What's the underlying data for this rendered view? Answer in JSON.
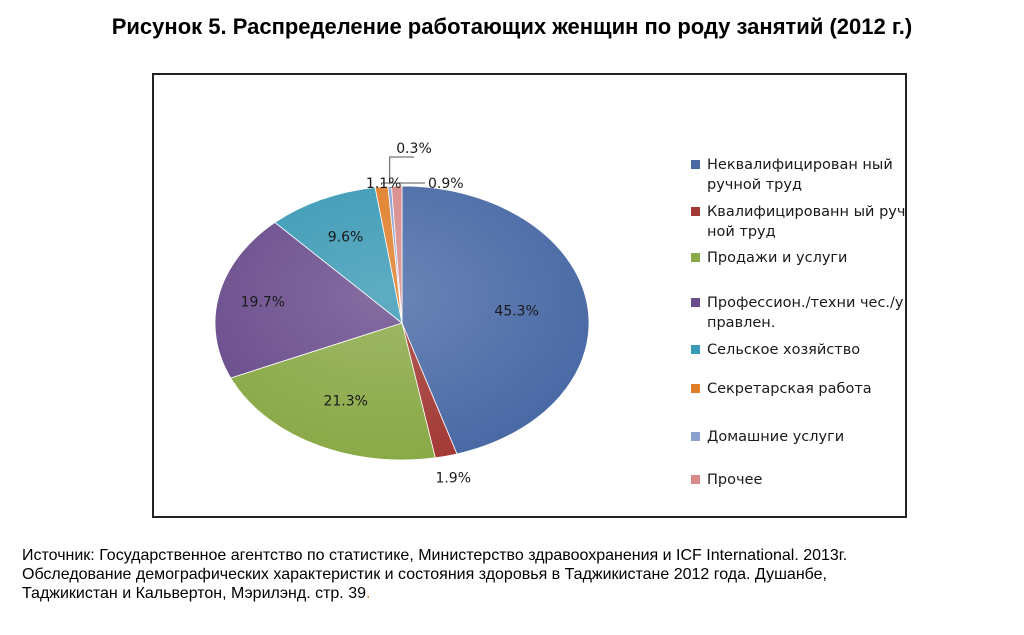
{
  "title": "Рисунок 5.  Распределение  работающих женщин по роду занятий (2012 г.)",
  "chart_data": {
    "type": "pie",
    "title": "Рисунок 5.  Распределение  работающих женщин по роду занятий (2012 г.)",
    "legend_position": "right",
    "slices": [
      {
        "name": "Неквалифицирован ный ручной труд",
        "value": 45.3,
        "label": "45.3%",
        "color": "#4a6aa6"
      },
      {
        "name": "Квалифицированн ый ручной труд",
        "value": 1.9,
        "label": "1.9%",
        "color": "#a33a36"
      },
      {
        "name": "Продажи и услуги",
        "value": 21.3,
        "label": "21.3%",
        "color": "#8aa947"
      },
      {
        "name": "Профессион./техни чес./управлен.",
        "value": 19.7,
        "label": "19.7%",
        "color": "#6a4c8c"
      },
      {
        "name": "Сельское хозяйство",
        "value": 9.6,
        "label": "9.6%",
        "color": "#3b9ab5"
      },
      {
        "name": "Секретарская работа",
        "value": 1.1,
        "label": "1.1%",
        "color": "#e07f2a"
      },
      {
        "name": "Домашние услуги",
        "value": 0.3,
        "label": "0.3%",
        "color": "#8aa0cf"
      },
      {
        "name": "Прочее",
        "value": 0.9,
        "label": "0.9%",
        "color": "#d88a8a"
      }
    ]
  },
  "source": {
    "line1": "Источник: Государственное агентство по статистике, Министерство здравоохранения и ICF International. 2013г.",
    "line2": "Обследование демографических характеристик и состояния здоровья в Таджикистане  2012 года. Душанбе,",
    "line3": "Таджикистан и Кальвертон, Мэрилэнд. стр. 39",
    "line3_end": "."
  }
}
